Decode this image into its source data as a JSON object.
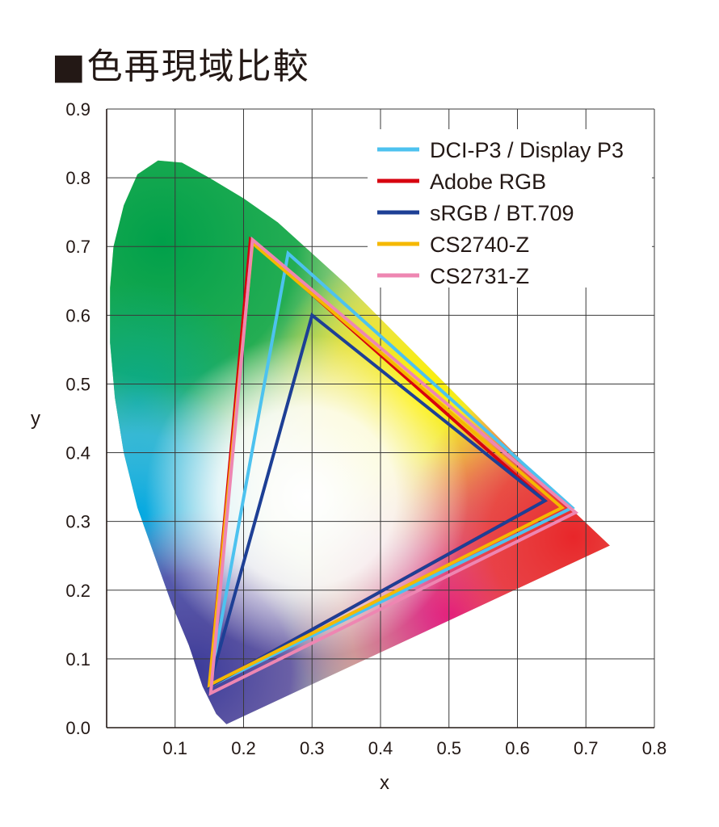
{
  "page": {
    "title": "■色再現域比較"
  },
  "chart_data": {
    "type": "scatter",
    "title": "■色再現域比較",
    "xlabel": "x",
    "ylabel": "y",
    "xlim": [
      0,
      0.8
    ],
    "ylim": [
      0,
      0.9
    ],
    "xticks": [
      0.1,
      0.2,
      0.3,
      0.4,
      0.5,
      0.6,
      0.7,
      0.8
    ],
    "yticks": [
      0.0,
      0.1,
      0.2,
      0.3,
      0.4,
      0.5,
      0.6,
      0.7,
      0.8,
      0.9
    ],
    "xtick_labels": [
      "0.1",
      "0.2",
      "0.3",
      "0.4",
      "0.5",
      "0.6",
      "0.7",
      "0.8"
    ],
    "ytick_labels": [
      "0.0",
      "0.1",
      "0.2",
      "0.3",
      "0.4",
      "0.5",
      "0.6",
      "0.7",
      "0.8",
      "0.9"
    ],
    "grid": true,
    "legend_position": "top-right",
    "locus": [
      [
        0.175,
        0.005
      ],
      [
        0.16,
        0.02
      ],
      [
        0.14,
        0.06
      ],
      [
        0.12,
        0.12
      ],
      [
        0.095,
        0.18
      ],
      [
        0.07,
        0.25
      ],
      [
        0.045,
        0.32
      ],
      [
        0.025,
        0.4
      ],
      [
        0.012,
        0.48
      ],
      [
        0.005,
        0.56
      ],
      [
        0.005,
        0.64
      ],
      [
        0.01,
        0.7
      ],
      [
        0.025,
        0.76
      ],
      [
        0.045,
        0.805
      ],
      [
        0.075,
        0.825
      ],
      [
        0.11,
        0.822
      ],
      [
        0.15,
        0.8
      ],
      [
        0.2,
        0.77
      ],
      [
        0.25,
        0.735
      ],
      [
        0.3,
        0.69
      ],
      [
        0.35,
        0.645
      ],
      [
        0.4,
        0.595
      ],
      [
        0.45,
        0.545
      ],
      [
        0.5,
        0.495
      ],
      [
        0.55,
        0.445
      ],
      [
        0.6,
        0.395
      ],
      [
        0.65,
        0.345
      ],
      [
        0.7,
        0.298
      ],
      [
        0.735,
        0.265
      ],
      [
        0.175,
        0.005
      ]
    ],
    "series": [
      {
        "name": "DCI-P3 / Display P3",
        "color": "#4dc2ef",
        "points": [
          [
            0.68,
            0.32
          ],
          [
            0.265,
            0.69
          ],
          [
            0.15,
            0.06
          ]
        ]
      },
      {
        "name": "Adobe RGB",
        "color": "#d7000f",
        "points": [
          [
            0.64,
            0.33
          ],
          [
            0.21,
            0.71
          ],
          [
            0.15,
            0.06
          ]
        ]
      },
      {
        "name": "sRGB / BT.709",
        "color": "#1d3f95",
        "points": [
          [
            0.64,
            0.33
          ],
          [
            0.3,
            0.6
          ],
          [
            0.15,
            0.06
          ]
        ]
      },
      {
        "name": "CS2740-Z",
        "color": "#f5b800",
        "points": [
          [
            0.665,
            0.32
          ],
          [
            0.213,
            0.705
          ],
          [
            0.15,
            0.062
          ]
        ]
      },
      {
        "name": "CS2731-Z",
        "color": "#ee86b2",
        "points": [
          [
            0.685,
            0.313
          ],
          [
            0.213,
            0.71
          ],
          [
            0.152,
            0.05
          ]
        ]
      }
    ]
  }
}
